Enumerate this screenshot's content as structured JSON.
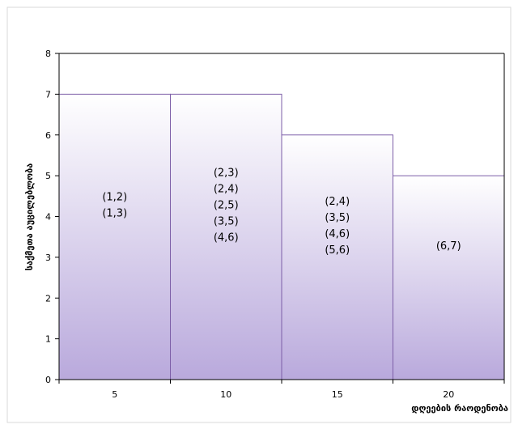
{
  "chart_data": {
    "type": "bar",
    "categories": [
      "5",
      "10",
      "15",
      "20"
    ],
    "values": [
      7,
      7,
      6,
      5
    ],
    "bar_annotations": [
      [
        "(1,2)",
        "(1,3)"
      ],
      [
        "(2,3)",
        "(2,4)",
        "(2,5)",
        "(3,5)",
        "(4,6)"
      ],
      [
        "(2,4)",
        "(3,5)",
        "(4,6)",
        "(5,6)"
      ],
      [
        "(6,7)"
      ]
    ],
    "title": "",
    "xlabel": "დღეების რაოდენობა",
    "ylabel": "საქმეთა   აუცილებლობა",
    "ylim": [
      0,
      8
    ],
    "yticks": [
      0,
      1,
      2,
      3,
      4,
      5,
      6,
      7,
      8
    ],
    "grid": false,
    "legend": "none",
    "colors": {
      "bar_fill_top": "#ffffff",
      "bar_fill_bottom": "#b9a9dc",
      "bar_stroke": "#7d5fa8",
      "axis": "#000000",
      "frame": "#d9d9d9"
    }
  }
}
